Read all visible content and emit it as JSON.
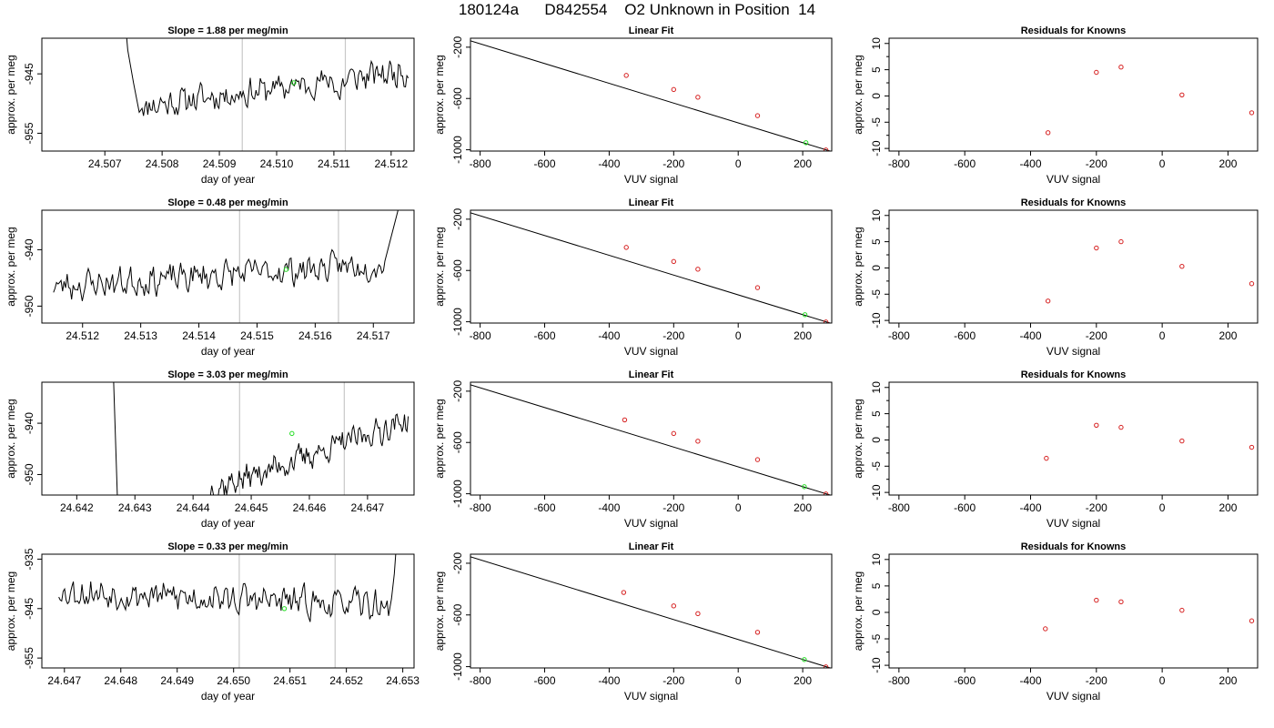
{
  "page": {
    "title": "180124a      D842554    O2 Unknown in Position  14"
  },
  "colors": {
    "line": "#000000",
    "known": "#d62020",
    "unknown": "#22dd22",
    "vline": "#c8c8c8"
  },
  "chart_data": [
    {
      "type": "line",
      "row": 1,
      "col": 1,
      "title": "Slope =  1.88  per meg/min",
      "xlabel": "day of year",
      "ylabel": "approx. per meg",
      "xlim": [
        24.5059,
        24.5124
      ],
      "ylim": [
        -958,
        -939
      ],
      "xticks": [
        "24.507",
        "24.508",
        "24.509",
        "24.510",
        "24.511",
        "24.512"
      ],
      "yticks": [
        "-955",
        "-945"
      ],
      "vlines": [
        24.5094,
        24.5112
      ],
      "unknown_point": [
        24.5103,
        -946.5
      ],
      "series": [
        {
          "spike_start": [
            24.5073,
            -930
          ],
          "spike_descend": [
            [
              24.5074,
              -941
            ],
            [
              24.5075,
              -946.5
            ]
          ],
          "x_start": 24.5076,
          "x_end": 24.5123,
          "n": 190,
          "base_start": -950.5,
          "base_end": -944.5,
          "amplitude": 1.8,
          "seed": 11,
          "bumps": [
            [
              24.5111,
              -4
            ]
          ]
        }
      ]
    },
    {
      "type": "line",
      "row": 2,
      "col": 1,
      "title": "Slope =  0.48  per meg/min",
      "xlabel": "day of year",
      "ylabel": "approx. per meg",
      "xlim": [
        24.5113,
        24.5177
      ],
      "ylim": [
        -953,
        -933
      ],
      "xticks": [
        "24.512",
        "24.513",
        "24.514",
        "24.515",
        "24.516",
        "24.517"
      ],
      "yticks": [
        "-950",
        "-940"
      ],
      "vlines": [
        24.5147,
        24.5164
      ],
      "unknown_point": [
        24.5155,
        -943.5
      ],
      "series": [
        {
          "x_start": 24.5115,
          "x_end": 24.5172,
          "n": 220,
          "base_start": -946.5,
          "base_end": -942.5,
          "amplitude": 2.0,
          "seed": 23,
          "spike_end": [
            [
              24.5173,
              -938
            ],
            [
              24.51745,
              -932
            ]
          ]
        }
      ]
    },
    {
      "type": "line",
      "row": 3,
      "col": 1,
      "title": "Slope =  3.03  per meg/min",
      "xlabel": "day of year",
      "ylabel": "approx. per meg",
      "xlim": [
        24.6414,
        24.6478
      ],
      "ylim": [
        -954,
        -932
      ],
      "xticks": [
        "24.642",
        "24.643",
        "24.644",
        "24.645",
        "24.646",
        "24.647"
      ],
      "yticks": [
        "-950",
        "-940"
      ],
      "vlines": [
        24.6448,
        24.6466
      ],
      "unknown_point": [
        24.6457,
        -942
      ],
      "series": [
        {
          "spike_start": [
            24.6426,
            -920
          ],
          "spike_descend": [
            [
              24.6427,
              -955
            ]
          ],
          "gap_to": 24.6443,
          "x_start": 24.6443,
          "x_end": 24.6477,
          "n": 160,
          "base_start": -953,
          "base_end": -939.5,
          "amplitude": 2.0,
          "seed": 37
        }
      ]
    },
    {
      "type": "line",
      "row": 4,
      "col": 1,
      "title": "Slope =  0.33  per meg/min",
      "xlabel": "day of year",
      "ylabel": "approx. per meg",
      "xlim": [
        24.6466,
        24.6532
      ],
      "ylim": [
        -957,
        -934
      ],
      "xticks": [
        "24.647",
        "24.648",
        "24.649",
        "24.650",
        "24.651",
        "24.652",
        "24.653"
      ],
      "yticks": [
        "-955",
        "-945",
        "-935"
      ],
      "vlines": [
        24.6501,
        24.6518
      ],
      "unknown_point": [
        24.6509,
        -945
      ],
      "series": [
        {
          "x_start": 24.6469,
          "x_end": 24.6528,
          "n": 230,
          "base_start": -941.5,
          "base_end": -944.5,
          "amplitude": 2.3,
          "seed": 53,
          "spike_end": [
            [
              24.65285,
              -938
            ],
            [
              24.6529,
              -930
            ]
          ]
        }
      ]
    },
    {
      "type": "scatter",
      "row": 1,
      "col": 2,
      "title": "Linear Fit",
      "xlabel": "VUV signal",
      "ylabel": "approx. per meg",
      "xlim": [
        -830,
        290
      ],
      "ylim": [
        -1010,
        -130
      ],
      "xticks": [
        "-800",
        "-600",
        "-400",
        "-200",
        "0",
        "200"
      ],
      "yticks": [
        "-200",
        "-600",
        "-1000"
      ],
      "fit_line": [
        [
          -830,
          -150
        ],
        [
          285,
          -1010
        ]
      ],
      "known_points": [
        [
          -347,
          -420
        ],
        [
          -200,
          -530
        ],
        [
          -125,
          -590
        ],
        [
          60,
          -734
        ],
        [
          272,
          -1002
        ]
      ],
      "unknown_points": [
        [
          210,
          -945
        ]
      ]
    },
    {
      "type": "scatter",
      "row": 2,
      "col": 2,
      "title": "Linear Fit",
      "xlabel": "VUV signal",
      "ylabel": "approx. per meg",
      "xlim": [
        -830,
        290
      ],
      "ylim": [
        -1010,
        -130
      ],
      "xticks": [
        "-800",
        "-600",
        "-400",
        "-200",
        "0",
        "200"
      ],
      "yticks": [
        "-200",
        "-600",
        "-1000"
      ],
      "fit_line": [
        [
          -830,
          -150
        ],
        [
          285,
          -1010
        ]
      ],
      "known_points": [
        [
          -347,
          -420
        ],
        [
          -200,
          -530
        ],
        [
          -125,
          -590
        ],
        [
          60,
          -734
        ],
        [
          272,
          -1002
        ]
      ],
      "unknown_points": [
        [
          207,
          -945
        ]
      ]
    },
    {
      "type": "scatter",
      "row": 3,
      "col": 2,
      "title": "Linear Fit",
      "xlabel": "VUV signal",
      "ylabel": "approx. per meg",
      "xlim": [
        -830,
        290
      ],
      "ylim": [
        -1010,
        -130
      ],
      "xticks": [
        "-800",
        "-600",
        "-400",
        "-200",
        "0",
        "200"
      ],
      "yticks": [
        "-200",
        "-600",
        "-1000"
      ],
      "fit_line": [
        [
          -830,
          -150
        ],
        [
          285,
          -1010
        ]
      ],
      "known_points": [
        [
          -352,
          -424
        ],
        [
          -200,
          -530
        ],
        [
          -125,
          -590
        ],
        [
          60,
          -734
        ],
        [
          272,
          -1002
        ]
      ],
      "unknown_points": [
        [
          205,
          -945
        ]
      ]
    },
    {
      "type": "scatter",
      "row": 4,
      "col": 2,
      "title": "Linear Fit",
      "xlabel": "VUV signal",
      "ylabel": "approx. per meg",
      "xlim": [
        -830,
        290
      ],
      "ylim": [
        -1010,
        -130
      ],
      "xticks": [
        "-800",
        "-600",
        "-400",
        "-200",
        "0",
        "200"
      ],
      "yticks": [
        "-200",
        "-600",
        "-1000"
      ],
      "fit_line": [
        [
          -830,
          -150
        ],
        [
          285,
          -1010
        ]
      ],
      "known_points": [
        [
          -355,
          -426
        ],
        [
          -200,
          -530
        ],
        [
          -125,
          -590
        ],
        [
          60,
          -734
        ],
        [
          272,
          -1002
        ]
      ],
      "unknown_points": [
        [
          205,
          -945
        ]
      ]
    },
    {
      "type": "scatter",
      "row": 1,
      "col": 3,
      "title": "Residuals for Knowns",
      "xlabel": "VUV signal",
      "ylabel": "approx. per meg",
      "xlim": [
        -830,
        290
      ],
      "ylim": [
        -10.5,
        11
      ],
      "xticks": [
        "-800",
        "-600",
        "-400",
        "-200",
        "0",
        "200"
      ],
      "yticks": [
        "-10",
        "-5",
        "0",
        "5",
        "10"
      ],
      "known_points": [
        [
          -347,
          -7
        ],
        [
          -200,
          4.5
        ],
        [
          -125,
          5.5
        ],
        [
          60,
          0.2
        ],
        [
          272,
          -3.2
        ]
      ]
    },
    {
      "type": "scatter",
      "row": 2,
      "col": 3,
      "title": "Residuals for Knowns",
      "xlabel": "VUV signal",
      "ylabel": "approx. per meg",
      "xlim": [
        -830,
        290
      ],
      "ylim": [
        -10.5,
        11
      ],
      "xticks": [
        "-800",
        "-600",
        "-400",
        "-200",
        "0",
        "200"
      ],
      "yticks": [
        "-10",
        "-5",
        "0",
        "5",
        "10"
      ],
      "known_points": [
        [
          -347,
          -6.3
        ],
        [
          -200,
          3.8
        ],
        [
          -125,
          5
        ],
        [
          60,
          0.3
        ],
        [
          272,
          -3
        ]
      ]
    },
    {
      "type": "scatter",
      "row": 3,
      "col": 3,
      "title": "Residuals for Knowns",
      "xlabel": "VUV signal",
      "ylabel": "approx. per meg",
      "xlim": [
        -830,
        290
      ],
      "ylim": [
        -10.5,
        11
      ],
      "xticks": [
        "-800",
        "-600",
        "-400",
        "-200",
        "0",
        "200"
      ],
      "yticks": [
        "-10",
        "-5",
        "0",
        "5",
        "10"
      ],
      "known_points": [
        [
          -352,
          -3.5
        ],
        [
          -200,
          2.8
        ],
        [
          -125,
          2.4
        ],
        [
          60,
          -0.2
        ],
        [
          272,
          -1.4
        ]
      ]
    },
    {
      "type": "scatter",
      "row": 4,
      "col": 3,
      "title": "Residuals for Knowns",
      "xlabel": "VUV signal",
      "ylabel": "approx. per meg",
      "xlim": [
        -830,
        290
      ],
      "ylim": [
        -10.5,
        11
      ],
      "xticks": [
        "-800",
        "-600",
        "-400",
        "-200",
        "0",
        "200"
      ],
      "yticks": [
        "-10",
        "-5",
        "0",
        "5",
        "10"
      ],
      "known_points": [
        [
          -355,
          -3.1
        ],
        [
          -200,
          2.3
        ],
        [
          -125,
          2
        ],
        [
          60,
          0.4
        ],
        [
          272,
          -1.6
        ]
      ]
    }
  ]
}
